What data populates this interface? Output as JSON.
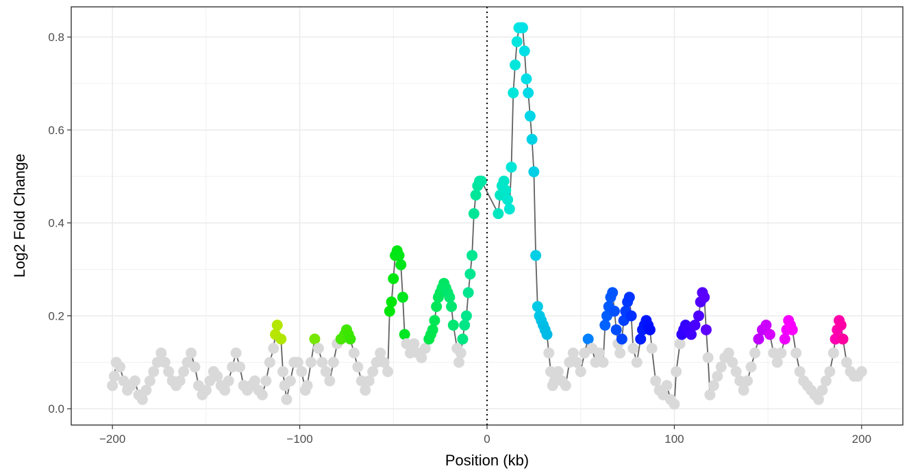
{
  "chart_data": {
    "type": "scatter",
    "xlabel": "Position (kb)",
    "ylabel": "Log2 Fold Change",
    "xlim": [
      -222,
      222
    ],
    "ylim": [
      -0.035,
      0.865
    ],
    "x_ticks": [
      -200,
      -100,
      0,
      100,
      200
    ],
    "y_ticks": [
      0.0,
      0.2,
      0.4,
      0.6,
      0.8
    ],
    "x_tick_labels": [
      "−200",
      "−100",
      "0",
      "100",
      "200"
    ],
    "y_tick_labels": [
      "0.0",
      "0.2",
      "0.4",
      "0.6",
      "0.8"
    ],
    "grid": true,
    "reference_line": {
      "x": 0,
      "style": "dotted"
    },
    "line_color": "#606060",
    "background_point_color": "#d9d9d9",
    "series": [
      {
        "points": [
          [
            -200,
            0.05
          ],
          [
            -199,
            0.07
          ],
          [
            -198,
            0.1
          ],
          [
            -196,
            0.09
          ],
          [
            -194,
            0.06
          ],
          [
            -192,
            0.04
          ],
          [
            -190,
            0.05
          ],
          [
            -188,
            0.06
          ],
          [
            -186,
            0.03
          ],
          [
            -184,
            0.02
          ],
          [
            -182,
            0.04
          ],
          [
            -180,
            0.06
          ],
          [
            -178,
            0.08
          ],
          [
            -176,
            0.1
          ],
          [
            -174,
            0.12
          ],
          [
            -172,
            0.1
          ],
          [
            -170,
            0.08
          ],
          [
            -168,
            0.06
          ],
          [
            -166,
            0.05
          ],
          [
            -164,
            0.06
          ],
          [
            -162,
            0.08
          ],
          [
            -160,
            0.1
          ],
          [
            -158,
            0.12
          ],
          [
            -156,
            0.09
          ],
          [
            -154,
            0.05
          ],
          [
            -152,
            0.03
          ],
          [
            -150,
            0.04
          ],
          [
            -148,
            0.06
          ],
          [
            -146,
            0.08
          ],
          [
            -144,
            0.07
          ],
          [
            -142,
            0.05
          ],
          [
            -140,
            0.04
          ],
          [
            -138,
            0.06
          ],
          [
            -136,
            0.09
          ],
          [
            -134,
            0.12
          ],
          [
            -132,
            0.09
          ],
          [
            -130,
            0.05
          ],
          [
            -128,
            0.04
          ],
          [
            -126,
            0.05
          ],
          [
            -124,
            0.06
          ],
          [
            -122,
            0.04
          ],
          [
            -120,
            0.03
          ],
          [
            -118,
            0.06
          ],
          [
            -116,
            0.1
          ],
          [
            -114,
            0.13
          ],
          [
            -113,
            0.16
          ],
          [
            -112,
            0.18
          ],
          [
            -110,
            0.15
          ],
          [
            -109,
            0.08
          ],
          [
            -108,
            0.05
          ],
          [
            -107,
            0.02
          ],
          [
            -105,
            0.06
          ],
          [
            -103,
            0.1
          ],
          [
            -101,
            0.1
          ],
          [
            -99,
            0.08
          ],
          [
            -97,
            0.04
          ],
          [
            -96,
            0.05
          ],
          [
            -94,
            0.1
          ],
          [
            -92,
            0.15
          ],
          [
            -90,
            0.13
          ],
          [
            -88,
            0.1
          ],
          [
            -86,
            0.08
          ],
          [
            -84,
            0.06
          ],
          [
            -82,
            0.1
          ],
          [
            -80,
            0.14
          ],
          [
            -78,
            0.15
          ],
          [
            -76,
            0.16
          ],
          [
            -75,
            0.17
          ],
          [
            -74,
            0.16
          ],
          [
            -73,
            0.15
          ],
          [
            -71,
            0.12
          ],
          [
            -69,
            0.09
          ],
          [
            -67,
            0.06
          ],
          [
            -65,
            0.04
          ],
          [
            -63,
            0.06
          ],
          [
            -61,
            0.08
          ],
          [
            -59,
            0.1
          ],
          [
            -57,
            0.12
          ],
          [
            -55,
            0.1
          ],
          [
            -53,
            0.08
          ],
          [
            -52,
            0.21
          ],
          [
            -51,
            0.23
          ],
          [
            -50,
            0.28
          ],
          [
            -49,
            0.33
          ],
          [
            -48,
            0.34
          ],
          [
            -47,
            0.33
          ],
          [
            -46,
            0.31
          ],
          [
            -45,
            0.24
          ],
          [
            -44,
            0.16
          ],
          [
            -43,
            0.14
          ],
          [
            -41,
            0.12
          ],
          [
            -39,
            0.14
          ],
          [
            -37,
            0.12
          ],
          [
            -35,
            0.11
          ],
          [
            -33,
            0.13
          ],
          [
            -31,
            0.15
          ],
          [
            -30,
            0.16
          ],
          [
            -29,
            0.17
          ],
          [
            -28,
            0.19
          ],
          [
            -27,
            0.22
          ],
          [
            -26,
            0.24
          ],
          [
            -25,
            0.25
          ],
          [
            -24,
            0.26
          ],
          [
            -23,
            0.27
          ],
          [
            -22,
            0.26
          ],
          [
            -21,
            0.25
          ],
          [
            -20,
            0.24
          ],
          [
            -19,
            0.22
          ],
          [
            -18,
            0.18
          ],
          [
            -16,
            0.13
          ],
          [
            -15,
            0.1
          ],
          [
            -14,
            0.12
          ],
          [
            -13,
            0.15
          ],
          [
            -12,
            0.18
          ],
          [
            -11,
            0.2
          ],
          [
            -10,
            0.25
          ],
          [
            -9,
            0.29
          ],
          [
            -8,
            0.33
          ],
          [
            -7,
            0.42
          ],
          [
            -6,
            0.46
          ],
          [
            -5,
            0.48
          ],
          [
            -4,
            0.49
          ],
          [
            -3,
            0.49
          ],
          [
            6,
            0.42
          ],
          [
            7,
            0.46
          ],
          [
            8,
            0.48
          ],
          [
            9,
            0.49
          ],
          [
            10,
            0.47
          ],
          [
            11,
            0.45
          ],
          [
            12,
            0.43
          ],
          [
            13,
            0.52
          ],
          [
            14,
            0.68
          ],
          [
            15,
            0.74
          ],
          [
            16,
            0.79
          ],
          [
            17,
            0.82
          ],
          [
            18,
            0.82
          ],
          [
            19,
            0.82
          ],
          [
            20,
            0.77
          ],
          [
            21,
            0.71
          ],
          [
            22,
            0.68
          ],
          [
            23,
            0.63
          ],
          [
            24,
            0.58
          ],
          [
            25,
            0.51
          ],
          [
            26,
            0.33
          ],
          [
            27,
            0.22
          ],
          [
            28,
            0.2
          ],
          [
            29,
            0.19
          ],
          [
            30,
            0.18
          ],
          [
            31,
            0.17
          ],
          [
            32,
            0.16
          ],
          [
            33,
            0.12
          ],
          [
            34,
            0.08
          ],
          [
            35,
            0.05
          ],
          [
            36,
            0.06
          ],
          [
            38,
            0.08
          ],
          [
            40,
            0.06
          ],
          [
            42,
            0.05
          ],
          [
            44,
            0.1
          ],
          [
            46,
            0.12
          ],
          [
            48,
            0.1
          ],
          [
            50,
            0.08
          ],
          [
            52,
            0.12
          ],
          [
            54,
            0.15
          ],
          [
            56,
            0.13
          ],
          [
            58,
            0.1
          ],
          [
            60,
            0.12
          ],
          [
            62,
            0.1
          ],
          [
            63,
            0.18
          ],
          [
            64,
            0.2
          ],
          [
            65,
            0.22
          ],
          [
            66,
            0.24
          ],
          [
            67,
            0.25
          ],
          [
            68,
            0.21
          ],
          [
            69,
            0.17
          ],
          [
            70,
            0.14
          ],
          [
            71,
            0.12
          ],
          [
            72,
            0.15
          ],
          [
            73,
            0.19
          ],
          [
            74,
            0.21
          ],
          [
            75,
            0.23
          ],
          [
            76,
            0.24
          ],
          [
            77,
            0.2
          ],
          [
            78,
            0.13
          ],
          [
            80,
            0.1
          ],
          [
            82,
            0.15
          ],
          [
            83,
            0.17
          ],
          [
            84,
            0.18
          ],
          [
            85,
            0.19
          ],
          [
            86,
            0.18
          ],
          [
            87,
            0.17
          ],
          [
            88,
            0.13
          ],
          [
            90,
            0.06
          ],
          [
            92,
            0.04
          ],
          [
            94,
            0.03
          ],
          [
            96,
            0.05
          ],
          [
            98,
            0.02
          ],
          [
            100,
            0.01
          ],
          [
            101,
            0.08
          ],
          [
            103,
            0.14
          ],
          [
            104,
            0.16
          ],
          [
            105,
            0.17
          ],
          [
            106,
            0.18
          ],
          [
            107,
            0.17
          ],
          [
            109,
            0.16
          ],
          [
            111,
            0.18
          ],
          [
            113,
            0.2
          ],
          [
            114,
            0.23
          ],
          [
            115,
            0.25
          ],
          [
            116,
            0.24
          ],
          [
            117,
            0.17
          ],
          [
            118,
            0.11
          ],
          [
            119,
            0.03
          ],
          [
            121,
            0.05
          ],
          [
            123,
            0.07
          ],
          [
            125,
            0.09
          ],
          [
            127,
            0.11
          ],
          [
            129,
            0.12
          ],
          [
            131,
            0.1
          ],
          [
            133,
            0.08
          ],
          [
            135,
            0.06
          ],
          [
            137,
            0.04
          ],
          [
            139,
            0.06
          ],
          [
            141,
            0.09
          ],
          [
            143,
            0.12
          ],
          [
            145,
            0.15
          ],
          [
            147,
            0.17
          ],
          [
            149,
            0.18
          ],
          [
            151,
            0.16
          ],
          [
            153,
            0.12
          ],
          [
            155,
            0.1
          ],
          [
            157,
            0.12
          ],
          [
            159,
            0.15
          ],
          [
            160,
            0.17
          ],
          [
            161,
            0.19
          ],
          [
            162,
            0.18
          ],
          [
            163,
            0.17
          ],
          [
            165,
            0.12
          ],
          [
            167,
            0.08
          ],
          [
            169,
            0.06
          ],
          [
            171,
            0.05
          ],
          [
            173,
            0.04
          ],
          [
            175,
            0.03
          ],
          [
            177,
            0.02
          ],
          [
            179,
            0.04
          ],
          [
            181,
            0.06
          ],
          [
            183,
            0.08
          ],
          [
            185,
            0.12
          ],
          [
            186,
            0.15
          ],
          [
            187,
            0.17
          ],
          [
            188,
            0.19
          ],
          [
            189,
            0.18
          ],
          [
            190,
            0.15
          ],
          [
            192,
            0.1
          ],
          [
            194,
            0.08
          ],
          [
            196,
            0.07
          ],
          [
            198,
            0.07
          ],
          [
            200,
            0.08
          ]
        ]
      }
    ]
  }
}
